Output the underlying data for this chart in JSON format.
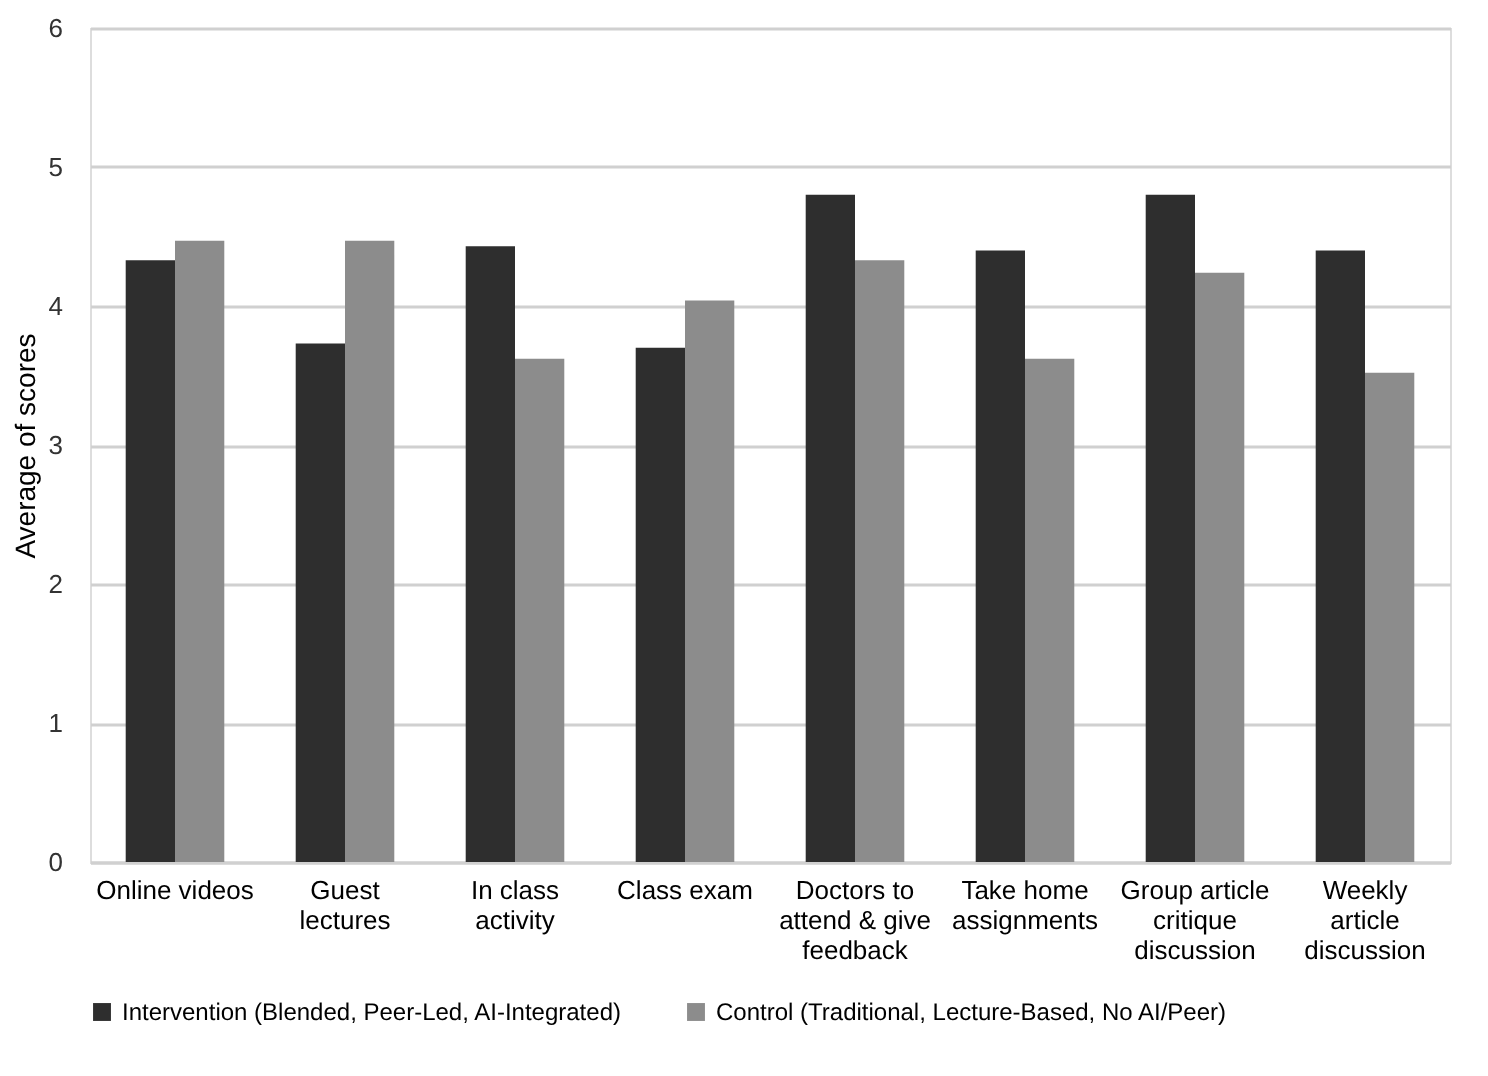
{
  "chart_data": {
    "type": "bar",
    "ylabel": "Average of scores",
    "categories": [
      "Online videos",
      "Guest lectures",
      "In class activity",
      "Class exam",
      "Doctors to attend & give feedback",
      "Take home assignments",
      "Group article critique discussion",
      "Weekly article discussion"
    ],
    "series": [
      {
        "name": "Intervention (Blended, Peer-Led, AI-Integrated)",
        "color": "#2e2e2e",
        "values": [
          4.33,
          3.73,
          4.43,
          3.7,
          4.8,
          4.4,
          4.8,
          4.4
        ]
      },
      {
        "name": "Control (Traditional, Lecture-Based, No AI/Peer)",
        "color": "#8c8c8c",
        "values": [
          4.47,
          4.47,
          3.62,
          4.04,
          4.33,
          3.62,
          4.24,
          3.52
        ]
      }
    ],
    "ylim": [
      0,
      6
    ],
    "yticks": [
      0,
      1,
      2,
      3,
      4,
      5,
      6
    ],
    "grid": "y",
    "legend": "bottom"
  }
}
